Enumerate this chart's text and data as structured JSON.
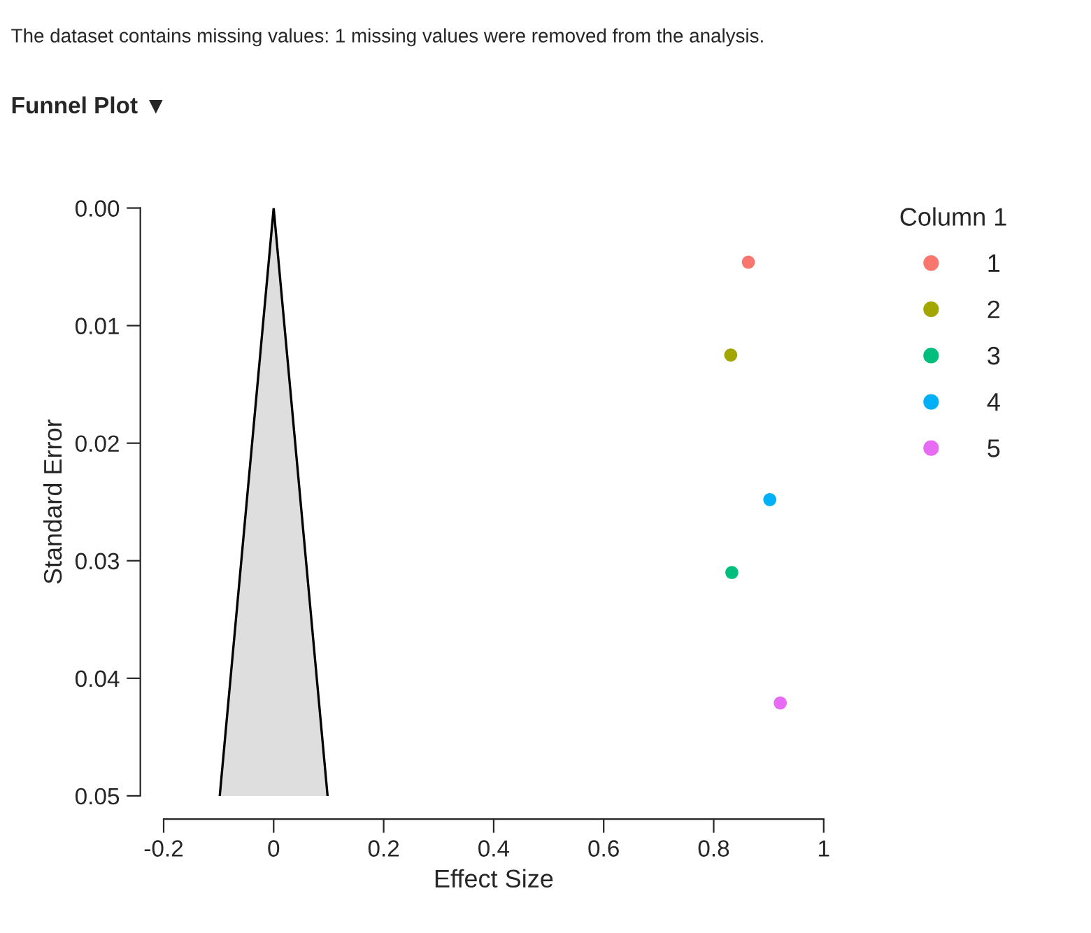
{
  "chart_data": {
    "type": "scatter",
    "title": "Funnel Plot ▼",
    "annotations": [
      "The dataset contains missing values: 1 missing values were removed from the analysis."
    ],
    "xlabel": "Effect Size",
    "ylabel": "Standard Error",
    "legend_title": "Column 1",
    "legend": "right",
    "xlim": [
      -0.2,
      1
    ],
    "ylim": [
      0.05,
      0
    ],
    "xticks": [
      {
        "value": -0.2,
        "label": "-0.2"
      },
      0,
      0.2,
      0.4,
      0.6,
      0.8,
      1
    ],
    "yticks": [
      {
        "value": 0,
        "label": "0.00"
      },
      {
        "value": 0.01,
        "label": "0.01"
      },
      {
        "value": 0.02,
        "label": "0.02"
      },
      {
        "value": 0.03,
        "label": "0.03"
      },
      {
        "value": 0.04,
        "label": "0.04"
      },
      {
        "value": 0.05,
        "label": "0.05"
      }
    ],
    "grid": false,
    "marker": "circle",
    "series": [
      {
        "type": "area",
        "marker": "none",
        "color": "#dedede",
        "x": [
          -0.098,
          0,
          0.098
        ],
        "values": [
          0.05,
          0,
          0.05
        ]
      },
      {
        "name": "1",
        "color": "#f8766d",
        "x": [
          0.863
        ],
        "values": [
          0.0046
        ]
      },
      {
        "name": "2",
        "color": "#a3a500",
        "x": [
          0.831
        ],
        "values": [
          0.0125
        ]
      },
      {
        "name": "3",
        "color": "#00bf7d",
        "x": [
          0.833
        ],
        "values": [
          0.031
        ]
      },
      {
        "name": "4",
        "color": "#00b0f6",
        "x": [
          0.902
        ],
        "values": [
          0.0248
        ]
      },
      {
        "name": "5",
        "color": "#e76bf3",
        "x": [
          0.921
        ],
        "values": [
          0.0421
        ]
      }
    ]
  }
}
